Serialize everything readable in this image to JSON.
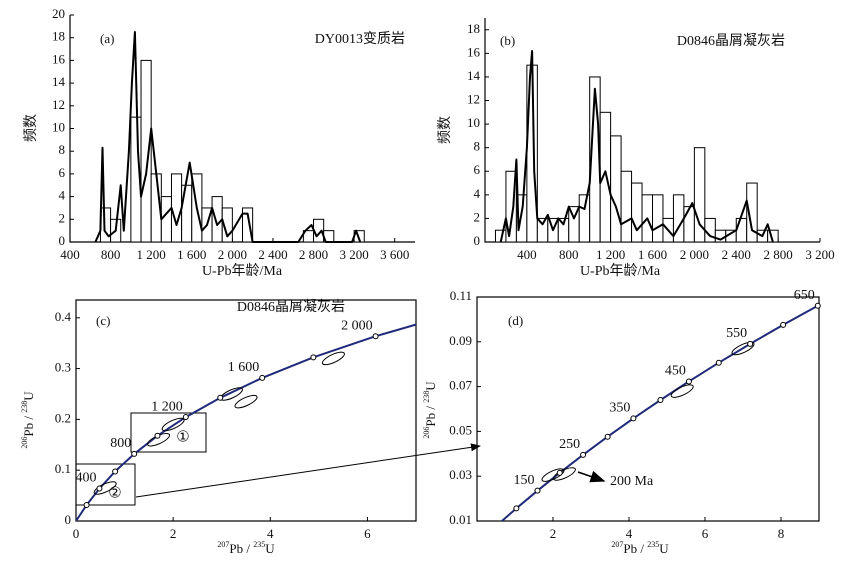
{
  "chart_data": [
    {
      "type": "histogram",
      "panel_label": "(a)",
      "title": "DY0013变质岩",
      "x_label": "U-Pb年龄/Ma",
      "y_label": "频数",
      "xlim": [
        400,
        3800
      ],
      "ylim": [
        0,
        20
      ],
      "xticks": [
        400,
        800,
        {
          "value": 1200,
          "label": "1 200"
        },
        {
          "value": 1600,
          "label": "1 600"
        },
        {
          "value": 2000,
          "label": "2 000"
        },
        {
          "value": 2400,
          "label": "2 400"
        },
        {
          "value": 2800,
          "label": "2 800"
        },
        {
          "value": 3200,
          "label": "3 200"
        },
        {
          "value": 3600,
          "label": "3 600"
        }
      ],
      "yticks": [
        0,
        2,
        4,
        6,
        8,
        10,
        12,
        14,
        16,
        18,
        20
      ],
      "bins": [
        700,
        800,
        900,
        1000,
        1100,
        1200,
        1300,
        1400,
        1500,
        1600,
        1700,
        1800,
        1900,
        2000,
        2100,
        2200,
        2300,
        2400,
        2500,
        2600,
        2700,
        2800,
        2900,
        3000,
        3100,
        3200,
        3300
      ],
      "counts": [
        3,
        2,
        0,
        11,
        16,
        6,
        4,
        6,
        5,
        6,
        3,
        4,
        3,
        0,
        3,
        0,
        0,
        0,
        0,
        0,
        1,
        2,
        1,
        0,
        0,
        1
      ],
      "curve": {
        "x": [
          650,
          700,
          720,
          740,
          780,
          850,
          900,
          930,
          980,
          1010,
          1040,
          1070,
          1100,
          1150,
          1200,
          1250,
          1300,
          1350,
          1400,
          1450,
          1500,
          1580,
          1650,
          1700,
          1750,
          1800,
          1850,
          1900,
          1950,
          2000,
          2100,
          2150,
          2200,
          2650,
          2720,
          2780,
          2830,
          2880,
          2920,
          3180,
          3220,
          3260
        ],
        "y": [
          0,
          1,
          8.3,
          1,
          0.5,
          1,
          5,
          1,
          8,
          14,
          18.5,
          8,
          4,
          6,
          10,
          6,
          2,
          2.5,
          3,
          1.5,
          3,
          7,
          3,
          1,
          1.5,
          3,
          1.5,
          2,
          0.5,
          1,
          2.5,
          2.5,
          0,
          0,
          1,
          1.5,
          0.5,
          1,
          0,
          0,
          1,
          0
        ]
      }
    },
    {
      "type": "histogram",
      "panel_label": "(b)",
      "title": "D0846晶屑凝灰岩",
      "x_label": "U-Pb年龄/Ma",
      "y_label": "频数",
      "xlim": [
        0,
        3200
      ],
      "ylim": [
        0,
        19
      ],
      "xticks": [
        400,
        800,
        {
          "value": 1200,
          "label": "1 200"
        },
        {
          "value": 1600,
          "label": "1 600"
        },
        {
          "value": 2000,
          "label": "2 000"
        },
        {
          "value": 2400,
          "label": "2 400"
        },
        {
          "value": 2800,
          "label": "2 800"
        },
        {
          "value": 3200,
          "label": "3 200"
        }
      ],
      "yticks": [
        0,
        2,
        4,
        6,
        8,
        10,
        12,
        14,
        16,
        18
      ],
      "bins": [
        100,
        200,
        300,
        400,
        500,
        600,
        700,
        800,
        900,
        1000,
        1100,
        1200,
        1300,
        1400,
        1500,
        1600,
        1700,
        1800,
        1900,
        2000,
        2100,
        2200,
        2300,
        2400,
        2500,
        2600,
        2700,
        2800
      ],
      "counts": [
        1,
        6,
        4,
        15,
        2,
        2,
        2,
        3,
        4,
        14,
        11,
        9,
        6,
        5,
        4,
        4,
        2,
        4,
        3,
        8,
        2,
        1,
        1,
        2,
        5,
        1,
        1
      ],
      "curve": {
        "x": [
          150,
          200,
          230,
          270,
          300,
          320,
          360,
          400,
          430,
          450,
          470,
          500,
          550,
          600,
          650,
          700,
          750,
          800,
          850,
          900,
          950,
          1000,
          1050,
          1080,
          1100,
          1150,
          1200,
          1250,
          1300,
          1400,
          1450,
          1550,
          1600,
          1700,
          1800,
          1900,
          1980,
          2050,
          2150,
          2250,
          2400,
          2500,
          2550,
          2650,
          2700,
          2750
        ],
        "y": [
          0,
          2,
          0.5,
          3,
          7,
          1,
          3,
          8,
          14,
          16.2,
          6,
          2,
          1.5,
          2.3,
          1,
          2,
          1.5,
          3,
          2,
          3,
          2.8,
          5,
          13,
          10,
          5,
          6,
          4,
          3,
          1.5,
          2,
          1,
          2,
          1,
          1.5,
          0.5,
          2,
          3.3,
          1.5,
          0.5,
          0.2,
          1,
          3.5,
          1,
          0.5,
          1.5,
          0
        ]
      }
    },
    {
      "type": "line",
      "panel_label": "(c)",
      "title": "D0846晶屑凝灰岩",
      "x_label": [
        "207",
        "Pb",
        " / ",
        "235",
        "U"
      ],
      "y_label": [
        "206",
        "Pb",
        " / ",
        "238",
        "U"
      ],
      "xlim": [
        0,
        7
      ],
      "ylim": [
        0,
        0.435
      ],
      "xticks": [
        0,
        2,
        4,
        6
      ],
      "yticks": [
        0,
        0.1,
        0.2,
        0.3,
        0.4
      ],
      "curve": {
        "x": [
          0,
          0.2177,
          0.4828,
          0.8056,
          1.1987,
          1.6774,
          2.2603,
          2.9701,
          3.8344,
          4.887,
          6.1687,
          7.7296
        ],
        "y": [
          0,
          0.03151,
          0.06402,
          0.09754,
          0.13213,
          0.1678,
          0.20459,
          0.24254,
          0.28173,
          0.32212,
          0.36376,
          0.40674
        ]
      },
      "age_marks": {
        "x": [
          0.2177,
          0.4828,
          0.8056,
          1.1987,
          1.6774,
          2.2603,
          2.9701,
          3.8344,
          4.887,
          6.1687
        ],
        "y": [
          0.03151,
          0.06402,
          0.09754,
          0.13213,
          0.1678,
          0.20459,
          0.24254,
          0.28173,
          0.32212,
          0.36376
        ],
        "labels": [
          null,
          "400",
          null,
          "800",
          null,
          "1 200",
          null,
          "1 600",
          null,
          "2 000"
        ]
      },
      "spots": {
        "x": [
          0.6,
          1.7,
          2.0,
          3.2,
          3.5,
          5.3
        ],
        "y": [
          0.065,
          0.16,
          0.19,
          0.25,
          0.235,
          0.32
        ]
      },
      "annotations": [
        "①",
        "②"
      ]
    },
    {
      "type": "line",
      "panel_label": "(d)",
      "x_label": [
        "207",
        "Pb",
        " / ",
        "235",
        "U"
      ],
      "y_label": [
        "206",
        "Pb",
        " / ",
        "238",
        "U"
      ],
      "xlim": [
        0,
        9
      ],
      "ylim": [
        0.01,
        0.11
      ],
      "xticks": [
        2,
        4,
        6,
        8
      ],
      "yticks": [
        0.01,
        0.03,
        0.05,
        0.07,
        0.09,
        0.11
      ],
      "curve": {
        "x": [
          0.50475,
          1.035,
          1.5919,
          2.177,
          2.7918,
          3.4375,
          4.1158,
          4.828,
          5.5765,
          6.3627,
          7.1888,
          8.056,
          8.9676
        ],
        "y": [
          0.007787,
          0.015633,
          0.023542,
          0.03151,
          0.039543,
          0.047637,
          0.055795,
          0.06402,
          0.0723,
          0.08065,
          0.089065,
          0.09754,
          0.10609
        ]
      },
      "age_marks": {
        "x": [
          1.035,
          1.5919,
          2.177,
          2.7918,
          3.4375,
          4.1158,
          4.828,
          5.5765,
          6.3627,
          7.1888,
          8.056,
          8.9676
        ],
        "y": [
          0.015633,
          0.023542,
          0.03151,
          0.039543,
          0.047637,
          0.055795,
          0.06402,
          0.0723,
          0.08065,
          0.089065,
          0.09754,
          0.10609
        ],
        "labels": [
          null,
          "150",
          null,
          "250",
          null,
          "350",
          null,
          "450",
          null,
          "550",
          null,
          "650"
        ]
      },
      "spots": {
        "x": [
          2.0,
          2.3,
          5.4,
          7.0
        ],
        "y": [
          0.0305,
          0.031,
          0.068,
          0.087
        ]
      },
      "annotations": [
        "200 Ma"
      ]
    }
  ]
}
